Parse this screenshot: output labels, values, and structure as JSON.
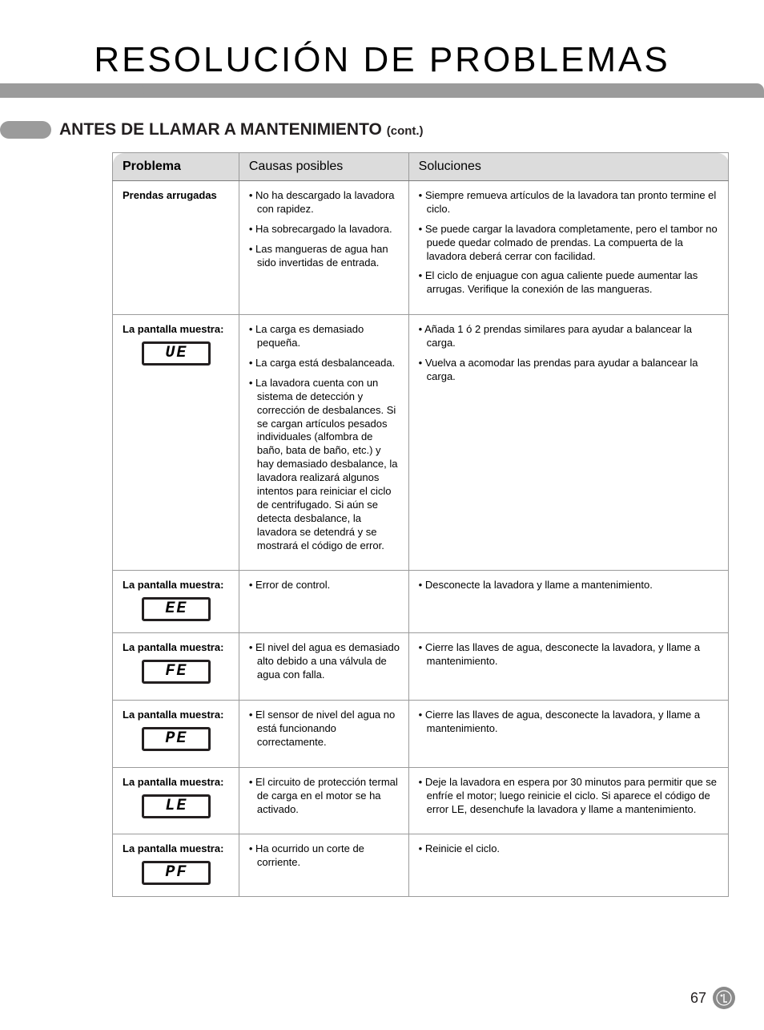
{
  "page": {
    "title": "RESOLUCIÓN DE PROBLEMAS",
    "section_title_main": "ANTES DE LLAMAR A MANTENIMIENTO",
    "section_title_cont": "(cont.)",
    "page_number": "67",
    "colors": {
      "grey_bar": "#9b9b9b",
      "header_bg": "#dcdcdc",
      "border": "#9b9b9b",
      "text": "#231f20"
    }
  },
  "table": {
    "headers": {
      "problem": "Problema",
      "causes": "Causas posibles",
      "solutions": "Soluciones"
    },
    "rows": [
      {
        "problem_label": "Prendas arrugadas",
        "display_code": "",
        "causes": [
          "No ha descargado la lavadora con rapidez.",
          "Ha sobrecargado la lavadora.",
          "Las mangueras de agua han sido invertidas de entrada."
        ],
        "solutions": [
          "Siempre remueva artículos de la lavadora tan pronto termine el ciclo.",
          "Se puede cargar la lavadora completamente, pero el tambor no puede quedar colmado de prendas. La compuerta de la lavadora deberá cerrar con facilidad.",
          "El ciclo de enjuague con agua caliente puede aumentar las arrugas. Verifique la conexión de las mangueras."
        ]
      },
      {
        "problem_label": "La pantalla muestra:",
        "display_code": "UE",
        "causes": [
          "La carga es demasiado pequeña.",
          "La carga está desbalanceada.",
          "La lavadora cuenta con un sistema de detección y corrección de desbalances. Si se cargan artículos pesados individuales (alfombra de baño, bata de baño, etc.) y hay demasiado desbalance, la lavadora realizará algunos intentos para reiniciar el ciclo de centrifugado. Si aún se detecta desbalance, la lavadora se detendrá y se mostrará el código de error."
        ],
        "solutions": [
          "Añada 1 ó 2 prendas similares para ayudar a balancear la carga.",
          "Vuelva a acomodar las prendas para ayudar a balancear la carga."
        ]
      },
      {
        "problem_label": "La pantalla muestra:",
        "display_code": "EE",
        "causes": [
          "Error de control."
        ],
        "solutions": [
          "Desconecte la lavadora y llame a mantenimiento."
        ]
      },
      {
        "problem_label": "La pantalla muestra:",
        "display_code": "FE",
        "causes": [
          "El nivel del agua es demasiado alto debido a una válvula de agua con falla."
        ],
        "solutions": [
          "Cierre las llaves de agua, desconecte la lavadora, y llame a mantenimiento."
        ]
      },
      {
        "problem_label": "La pantalla muestra:",
        "display_code": "PE",
        "causes": [
          "El sensor de nivel del agua no está funcionando correctamente."
        ],
        "solutions": [
          "Cierre las llaves de agua, desconecte la lavadora, y llame a mantenimiento."
        ]
      },
      {
        "problem_label": "La pantalla muestra:",
        "display_code": "LE",
        "causes": [
          "El circuito de protección termal de carga en el motor se ha activado."
        ],
        "solutions": [
          "Deje la lavadora en espera por 30 minutos para permitir que se enfríe el motor; luego reinicie el ciclo. Si aparece el código de error LE, desenchufe la lavadora y llame a mantenimiento."
        ]
      },
      {
        "problem_label": "La pantalla muestra:",
        "display_code": "PF",
        "causes": [
          "Ha ocurrido un corte de corriente."
        ],
        "solutions": [
          "Reinicie el ciclo."
        ]
      }
    ]
  }
}
